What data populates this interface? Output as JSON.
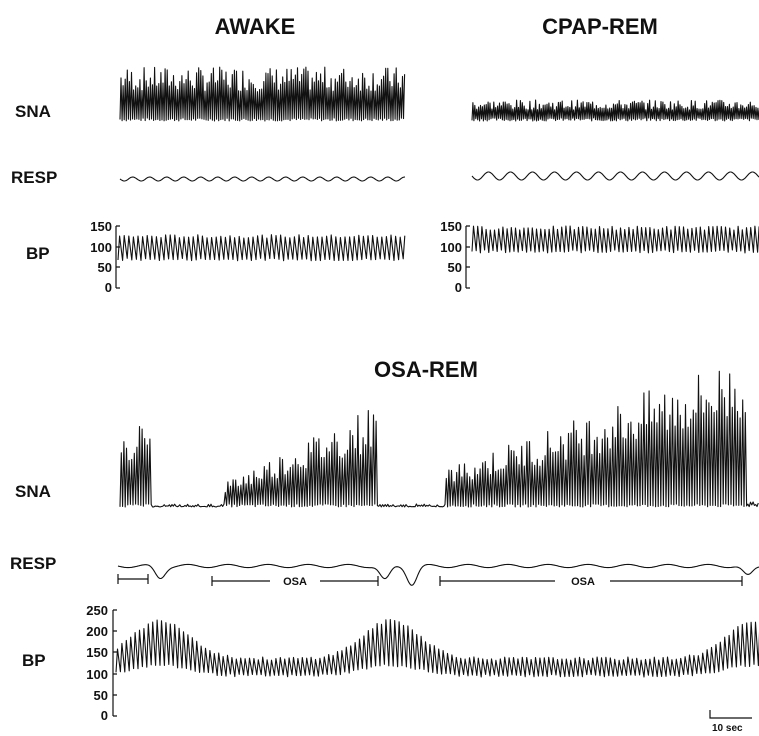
{
  "chart_data": [
    {
      "type": "line",
      "title": "AWAKE",
      "series": [
        {
          "name": "SNA",
          "pattern": "dense_bursts"
        },
        {
          "name": "RESP",
          "pattern": "small_sine"
        },
        {
          "name": "BP",
          "pattern": "pulsatile",
          "systolic": 125,
          "diastolic": 70
        }
      ],
      "bp_axis": {
        "ticks": [
          "150",
          "100",
          "50",
          "0"
        ],
        "ylim": [
          0,
          150
        ]
      }
    },
    {
      "type": "line",
      "title": "CPAP-REM",
      "series": [
        {
          "name": "SNA",
          "pattern": "low_bursts"
        },
        {
          "name": "RESP",
          "pattern": "small_sine"
        },
        {
          "name": "BP",
          "pattern": "pulsatile",
          "systolic": 145,
          "diastolic": 90
        }
      ],
      "bp_axis": {
        "ticks": [
          "150",
          "100",
          "50",
          "0"
        ],
        "ylim": [
          0,
          150
        ]
      }
    },
    {
      "type": "line",
      "title": "OSA-REM",
      "series": [
        {
          "name": "SNA",
          "pattern": "apnea_bursts"
        },
        {
          "name": "RESP",
          "pattern": "apnea_pauses"
        },
        {
          "name": "BP",
          "pattern": "pulsatile_surges",
          "baseline_systolic": 135,
          "peak_systolic": 225,
          "diastolic": 100
        }
      ],
      "bp_axis": {
        "ticks": [
          "250",
          "200",
          "150",
          "100",
          "50",
          "0"
        ],
        "ylim": [
          0,
          250
        ]
      },
      "annotations": [
        "OSA",
        "OSA"
      ],
      "scale_bar": "10 sec"
    }
  ],
  "labels": {
    "awake_title": "AWAKE",
    "cpap_title": "CPAP-REM",
    "osa_title": "OSA-REM",
    "sna_label": "SNA",
    "resp_label": "RESP",
    "bp_label": "BP",
    "osa_annot": "OSA",
    "scale_bar": "10 sec"
  }
}
